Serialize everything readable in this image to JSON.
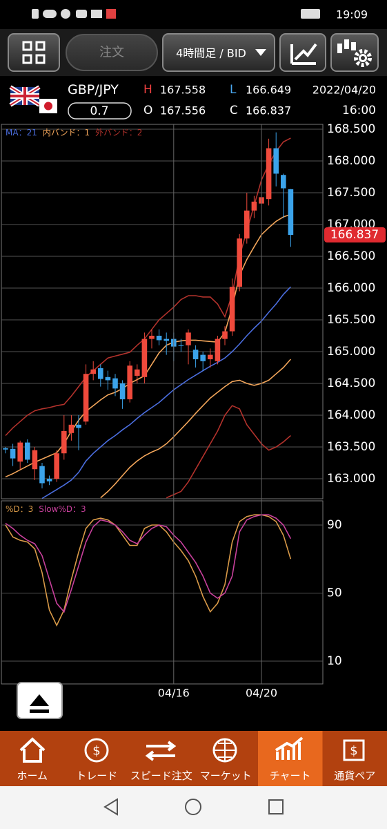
{
  "status_bar": {
    "time": "19:09"
  },
  "toolbar": {
    "order_button": "注文",
    "timeframe": "4時間足 / BID"
  },
  "header": {
    "pair": "GBP/JPY",
    "spread": "0.7",
    "high_label": "H",
    "high": "167.558",
    "open_label": "O",
    "open": "167.556",
    "low_label": "L",
    "low": "166.649",
    "close_label": "C",
    "close": "166.837",
    "date": "2022/04/20",
    "time": "16:00"
  },
  "chart_data": [
    {
      "type": "candlestick",
      "ylim": [
        162.685,
        168.576
      ],
      "yticks": [
        {
          "value": 163.0,
          "label": "163.000"
        },
        {
          "value": 163.5,
          "label": "163.500"
        },
        {
          "value": 164.0,
          "label": "164.000"
        },
        {
          "value": 164.5,
          "label": "164.500"
        },
        {
          "value": 165.0,
          "label": "165.000"
        },
        {
          "value": 165.5,
          "label": "165.500"
        },
        {
          "value": 166.0,
          "label": "166.000"
        },
        {
          "value": 166.5,
          "label": "166.500"
        },
        {
          "value": 167.0,
          "label": "167.000"
        },
        {
          "value": 167.5,
          "label": "167.500"
        },
        {
          "value": 168.0,
          "label": "168.000"
        },
        {
          "value": 168.5,
          "label": "168.500"
        }
      ],
      "grid": true,
      "last_price_label": "166.837",
      "ohlc": {
        "up_color": "#ef4a3c",
        "down_color": "#3ba3ea",
        "open": [
          163.48,
          163.47,
          163.27,
          163.57,
          163.15,
          163.2,
          163.0,
          163.0,
          163.4,
          163.72,
          163.85,
          163.9,
          164.65,
          164.74,
          164.6,
          164.58,
          164.5,
          164.25,
          164.62,
          164.6,
          165.2,
          165.25,
          165.2,
          165.2,
          165.1,
          165.1,
          165.03,
          164.95,
          164.88,
          164.85,
          165.2,
          165.32,
          166.02,
          166.78,
          167.22,
          167.33,
          167.4,
          168.2,
          167.78,
          167.556
        ],
        "high": [
          163.5,
          163.55,
          163.6,
          163.62,
          163.5,
          163.25,
          163.05,
          163.45,
          164.0,
          164.0,
          164.0,
          164.8,
          164.85,
          164.8,
          164.7,
          164.65,
          164.55,
          164.85,
          164.8,
          165.3,
          165.35,
          165.35,
          165.3,
          165.3,
          165.2,
          165.35,
          165.1,
          165.0,
          165.05,
          165.25,
          165.4,
          166.15,
          166.85,
          167.5,
          167.45,
          167.65,
          168.35,
          168.45,
          167.8,
          167.558
        ],
        "low": [
          163.4,
          163.2,
          163.15,
          163.25,
          162.98,
          162.85,
          162.9,
          162.95,
          163.3,
          163.6,
          163.45,
          163.85,
          164.55,
          164.45,
          164.4,
          164.3,
          164.1,
          164.2,
          164.5,
          164.5,
          165.05,
          165.1,
          164.95,
          164.85,
          165.0,
          164.8,
          164.75,
          164.7,
          164.75,
          164.8,
          165.1,
          165.25,
          165.95,
          166.7,
          167.1,
          167.2,
          167.3,
          167.6,
          167.1,
          166.649
        ],
        "close": [
          163.46,
          163.32,
          163.57,
          163.3,
          163.45,
          162.93,
          162.96,
          163.4,
          163.75,
          163.85,
          163.8,
          164.65,
          164.72,
          164.57,
          164.55,
          164.42,
          164.25,
          164.78,
          164.72,
          165.2,
          165.25,
          165.18,
          165.17,
          165.08,
          165.09,
          165.3,
          164.88,
          164.85,
          164.95,
          165.2,
          165.32,
          166.02,
          166.78,
          167.22,
          167.36,
          167.43,
          168.2,
          167.8,
          167.57,
          166.837
        ]
      },
      "series": [
        {
          "name": "MA：21",
          "color": "#4b6ee0",
          "values": [
            null,
            null,
            null,
            null,
            null,
            162.69,
            162.76,
            162.83,
            162.9,
            162.98,
            163.1,
            163.28,
            163.4,
            163.5,
            163.6,
            163.68,
            163.77,
            163.85,
            163.95,
            164.04,
            164.12,
            164.2,
            164.3,
            164.4,
            164.48,
            164.56,
            164.63,
            164.7,
            164.77,
            164.83,
            164.9,
            165.0,
            165.12,
            165.25,
            165.37,
            165.48,
            165.62,
            165.75,
            165.9,
            166.02
          ]
        },
        {
          "name": "内バンド：1",
          "color": "#f2a55a",
          "upper": [
            163.03,
            163.08,
            163.14,
            163.2,
            163.26,
            163.31,
            163.36,
            163.41,
            163.55,
            163.75,
            163.92,
            164.06,
            164.15,
            164.24,
            164.32,
            164.36,
            164.42,
            164.5,
            164.56,
            164.62,
            164.8,
            164.98,
            165.1,
            165.15,
            165.17,
            165.18,
            165.18,
            165.17,
            165.16,
            165.15,
            165.3,
            165.7,
            166.2,
            166.45,
            166.65,
            166.84,
            166.95,
            167.05,
            167.12,
            167.16
          ],
          "lower": [
            null,
            null,
            null,
            null,
            null,
            null,
            null,
            null,
            null,
            null,
            null,
            null,
            null,
            162.7,
            162.8,
            162.92,
            163.05,
            163.18,
            163.28,
            163.36,
            163.42,
            163.47,
            163.55,
            163.66,
            163.78,
            163.9,
            164.03,
            164.15,
            164.27,
            164.36,
            164.45,
            164.53,
            164.55,
            164.5,
            164.47,
            164.5,
            164.55,
            164.65,
            164.75,
            164.88
          ]
        },
        {
          "name": "外バンド：2",
          "color": "#b3322c",
          "upper": [
            163.68,
            163.8,
            163.9,
            164.0,
            164.07,
            164.1,
            164.12,
            164.15,
            164.17,
            164.3,
            164.45,
            164.6,
            164.7,
            164.8,
            164.9,
            164.93,
            164.96,
            164.99,
            165.1,
            165.2,
            165.35,
            165.5,
            165.6,
            165.7,
            165.82,
            165.88,
            165.88,
            165.86,
            165.86,
            165.75,
            165.55,
            165.9,
            166.5,
            166.9,
            167.3,
            167.7,
            167.95,
            168.15,
            168.3,
            168.36
          ],
          "lower": [
            null,
            null,
            null,
            null,
            null,
            null,
            null,
            null,
            null,
            null,
            null,
            null,
            null,
            null,
            null,
            null,
            null,
            null,
            null,
            null,
            null,
            null,
            162.7,
            162.75,
            162.8,
            162.95,
            163.15,
            163.35,
            163.55,
            163.75,
            164.0,
            164.15,
            164.1,
            163.85,
            163.7,
            163.55,
            163.45,
            163.5,
            163.58,
            163.68
          ]
        }
      ]
    },
    {
      "type": "line",
      "categories": [
        null,
        null,
        null,
        null,
        null,
        null,
        null,
        null,
        null,
        null,
        null,
        null,
        null,
        null,
        null,
        null,
        null,
        null,
        null,
        null,
        null,
        null,
        null,
        "04/16",
        null,
        null,
        null,
        null,
        null,
        null,
        null,
        null,
        null,
        null,
        null,
        "04/20",
        null,
        null,
        null,
        null
      ],
      "ylim": [
        -3.4,
        104.2
      ],
      "yticks": [
        10,
        50,
        90
      ],
      "grid": true,
      "series": [
        {
          "name": "%D：3",
          "color": "#d99a48",
          "values": [
            90,
            83,
            81,
            80,
            76,
            62,
            40,
            31,
            40,
            58,
            74,
            88,
            93,
            94,
            93,
            90,
            84,
            78,
            78,
            88,
            90,
            90,
            86,
            80,
            75,
            69,
            60,
            48,
            39,
            44,
            55,
            80,
            92,
            95,
            96,
            96,
            95,
            92,
            84,
            70
          ]
        },
        {
          "name": "Slow%D：3",
          "color": "#c8409c",
          "values": [
            91,
            88,
            84,
            81,
            79,
            72,
            58,
            44,
            39,
            52,
            66,
            80,
            89,
            93,
            92,
            90,
            86,
            81,
            79,
            84,
            88,
            90,
            89,
            84,
            80,
            74,
            68,
            60,
            50,
            47,
            50,
            60,
            86,
            93,
            95,
            96,
            96,
            94,
            90,
            82
          ]
        }
      ]
    }
  ],
  "nav": {
    "active": 4,
    "items": [
      "ホーム",
      "トレード",
      "スピード注文",
      "マーケット",
      "チャート",
      "通貨ペア"
    ]
  }
}
